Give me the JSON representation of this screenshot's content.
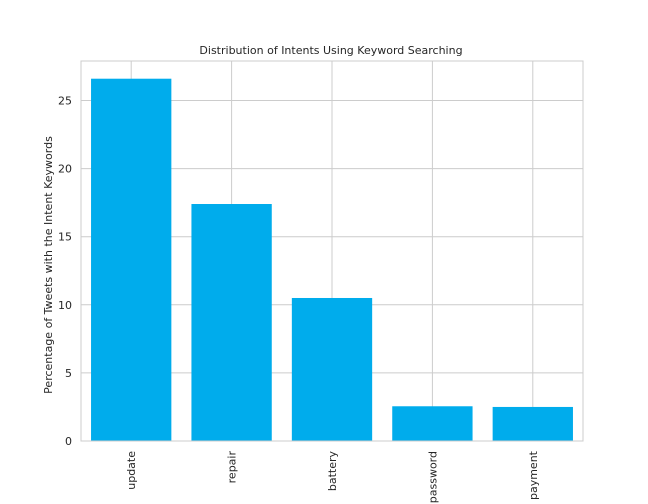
{
  "chart_data": {
    "type": "bar",
    "title": "Distribution of Intents Using Keyword Searching",
    "xlabel": "",
    "ylabel": "Percentage of Tweets with the Intent Keywords",
    "categories": [
      "update",
      "repair",
      "battery",
      "password",
      "payment"
    ],
    "values": [
      26.6,
      17.4,
      10.5,
      2.55,
      2.5
    ],
    "ylim": [
      0,
      27.9
    ],
    "yticks": [
      0,
      5,
      10,
      15,
      20,
      25
    ],
    "grid": true,
    "legend": "none",
    "bar_color": "#00acec",
    "grid_color": "#cccccc",
    "axis_color": "#cccccc"
  }
}
